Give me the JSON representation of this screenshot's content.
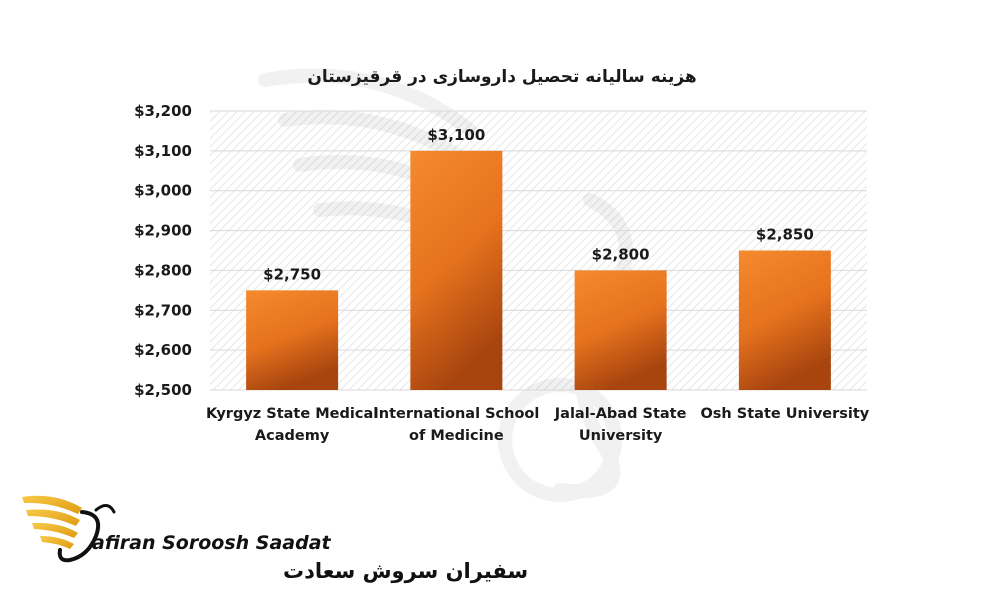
{
  "chart_data": {
    "type": "bar",
    "title": "هزینه سالیانه تحصیل داروسازی در قرقیزستان",
    "categories": [
      [
        "Kyrgyz State Medical",
        "Academy"
      ],
      [
        "International School",
        "of Medicine"
      ],
      [
        "Jalal-Abad State",
        "University"
      ],
      [
        "Osh State University"
      ]
    ],
    "values": [
      2750,
      3100,
      2800,
      2850
    ],
    "data_labels": [
      "$2,750",
      "$3,100",
      "$2,800",
      "$2,850"
    ],
    "ylim": [
      2500,
      3200
    ],
    "yticks": [
      2500,
      2600,
      2700,
      2800,
      2900,
      3000,
      3100,
      3200
    ],
    "ytick_labels": [
      "$2,500",
      "$2,600",
      "$2,700",
      "$2,800",
      "$2,900",
      "$3,000",
      "$3,100",
      "$3,200"
    ],
    "grid": true,
    "legend": "none",
    "colors": {
      "bar_top": "#f58a2e",
      "bar_bottom": "#a8450f",
      "grid": "#d9d9d9",
      "plot_hatch": "#e6e6e6"
    }
  },
  "logo": {
    "latin_text": "afiran Soroosh Saadat",
    "persian_text": "سفیران سروش سعادت",
    "colors": {
      "wing": "#f2b51e",
      "text": "#111111"
    }
  }
}
